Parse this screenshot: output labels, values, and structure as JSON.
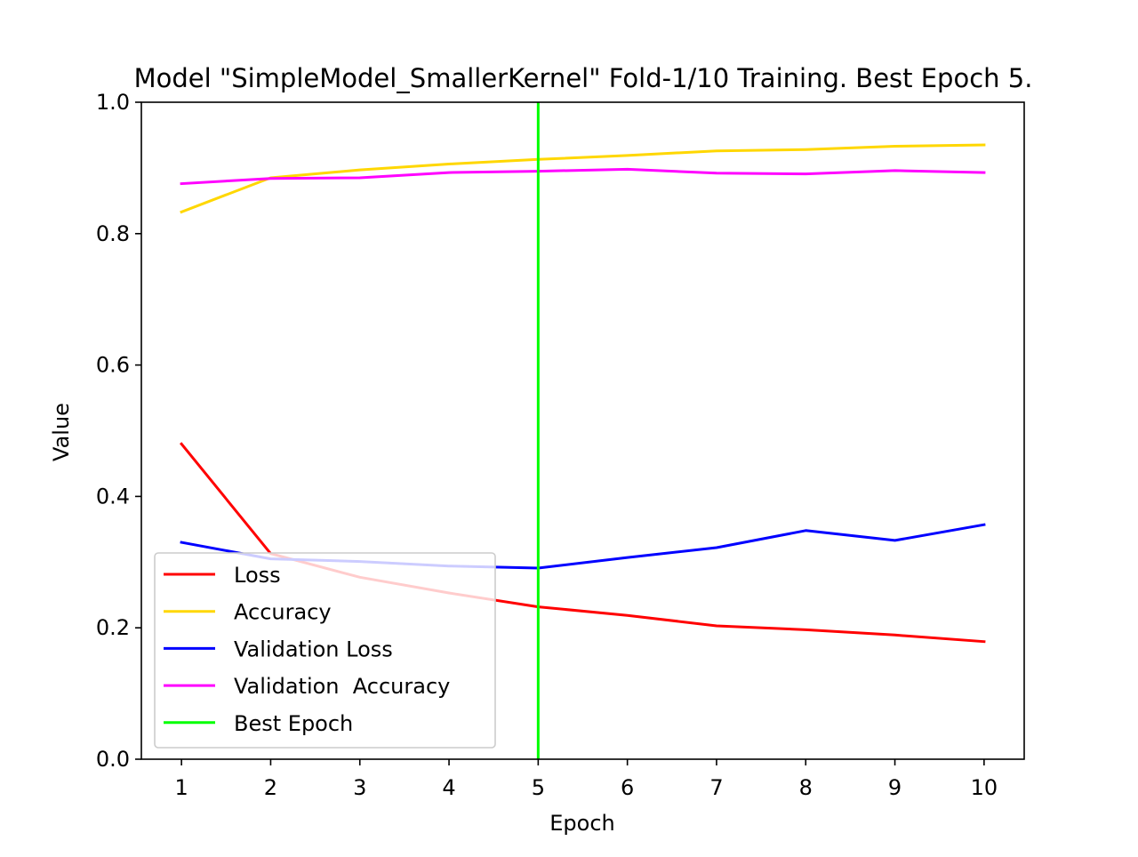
{
  "chart_data": {
    "type": "line",
    "title": "Model \"SimpleModel_SmallerKernel\" Fold-1/10 Training. Best Epoch 5.",
    "xlabel": "Epoch",
    "ylabel": "Value",
    "x": [
      1,
      2,
      3,
      4,
      5,
      6,
      7,
      8,
      9,
      10
    ],
    "x_ticks": [
      "1",
      "2",
      "3",
      "4",
      "5",
      "6",
      "7",
      "8",
      "9",
      "10"
    ],
    "y_ticks": [
      "0.0",
      "0.2",
      "0.4",
      "0.6",
      "0.8",
      "1.0"
    ],
    "xlim": [
      0.55,
      10.45
    ],
    "ylim": [
      0,
      1
    ],
    "grid": false,
    "legend_position": "lower-left",
    "series": [
      {
        "name": "Loss",
        "color": "#ff0000",
        "values": [
          0.48,
          0.313,
          0.277,
          0.253,
          0.232,
          0.219,
          0.203,
          0.197,
          0.189,
          0.179
        ]
      },
      {
        "name": "Accuracy",
        "color": "#ffd700",
        "values": [
          0.833,
          0.885,
          0.897,
          0.906,
          0.913,
          0.919,
          0.926,
          0.928,
          0.933,
          0.935
        ]
      },
      {
        "name": "Validation Loss",
        "color": "#0000ff",
        "values": [
          0.33,
          0.305,
          0.301,
          0.294,
          0.291,
          0.307,
          0.322,
          0.348,
          0.333,
          0.357
        ]
      },
      {
        "name": "Validation  Accuracy",
        "color": "#ff00ff",
        "values": [
          0.876,
          0.884,
          0.885,
          0.893,
          0.895,
          0.898,
          0.892,
          0.891,
          0.896,
          0.893
        ]
      }
    ],
    "best_epoch": {
      "name": "Best Epoch",
      "x": 5,
      "color": "#00ff00"
    }
  }
}
